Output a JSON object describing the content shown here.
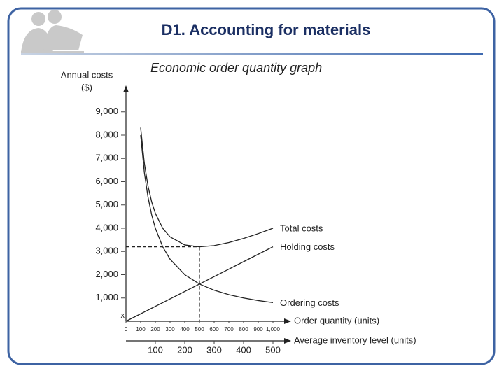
{
  "slide_title": "D1. Accounting for materials",
  "chart_data": {
    "type": "line",
    "title": "Economic order quantity graph",
    "ylabel": [
      "Annual costs",
      "($)"
    ],
    "xlabel": "Order quantity (units)",
    "x2label": "Average inventory level (units)",
    "origin_label": "x",
    "x": [
      0,
      100,
      125,
      150,
      175,
      200,
      250,
      300,
      400,
      500,
      600,
      700,
      800,
      900,
      1000
    ],
    "series": [
      {
        "name": "Total costs",
        "color": "#222222",
        "values": [
          null,
          8320,
          6800,
          5813,
          5131,
          4640,
          4000,
          3627,
          3280,
          3200,
          3253,
          3383,
          3560,
          3769,
          4000
        ]
      },
      {
        "name": "Holding costs",
        "color": "#222222",
        "values": [
          0,
          320,
          400,
          480,
          560,
          640,
          800,
          960,
          1280,
          1600,
          1920,
          2240,
          2560,
          2880,
          3200
        ]
      },
      {
        "name": "Ordering costs",
        "color": "#222222",
        "values": [
          null,
          8000,
          6400,
          5333,
          4571,
          4000,
          3200,
          2667,
          2000,
          1600,
          1333,
          1143,
          1000,
          889,
          800
        ]
      }
    ],
    "xlim": [
      0,
      1000
    ],
    "xticks": [
      0,
      100,
      200,
      300,
      400,
      500,
      600,
      700,
      800,
      900,
      {
        "value": 1000,
        "label": "1,000"
      }
    ],
    "x2lim": [
      0,
      500
    ],
    "x2ticks": [
      100,
      200,
      300,
      400,
      500
    ],
    "ylim": [
      0,
      10000
    ],
    "yticks": [
      {
        "value": 1000,
        "label": "1,000"
      },
      {
        "value": 2000,
        "label": "2,000"
      },
      {
        "value": 3000,
        "label": "3,000"
      },
      {
        "value": 4000,
        "label": "4,000"
      },
      {
        "value": 5000,
        "label": "5,000"
      },
      {
        "value": 6000,
        "label": "6,000"
      },
      {
        "value": 7000,
        "label": "7,000"
      },
      {
        "value": 8000,
        "label": "8,000"
      },
      {
        "value": 9000,
        "label": "9,000"
      }
    ],
    "eoq": {
      "x": 500,
      "y": 3200
    }
  }
}
